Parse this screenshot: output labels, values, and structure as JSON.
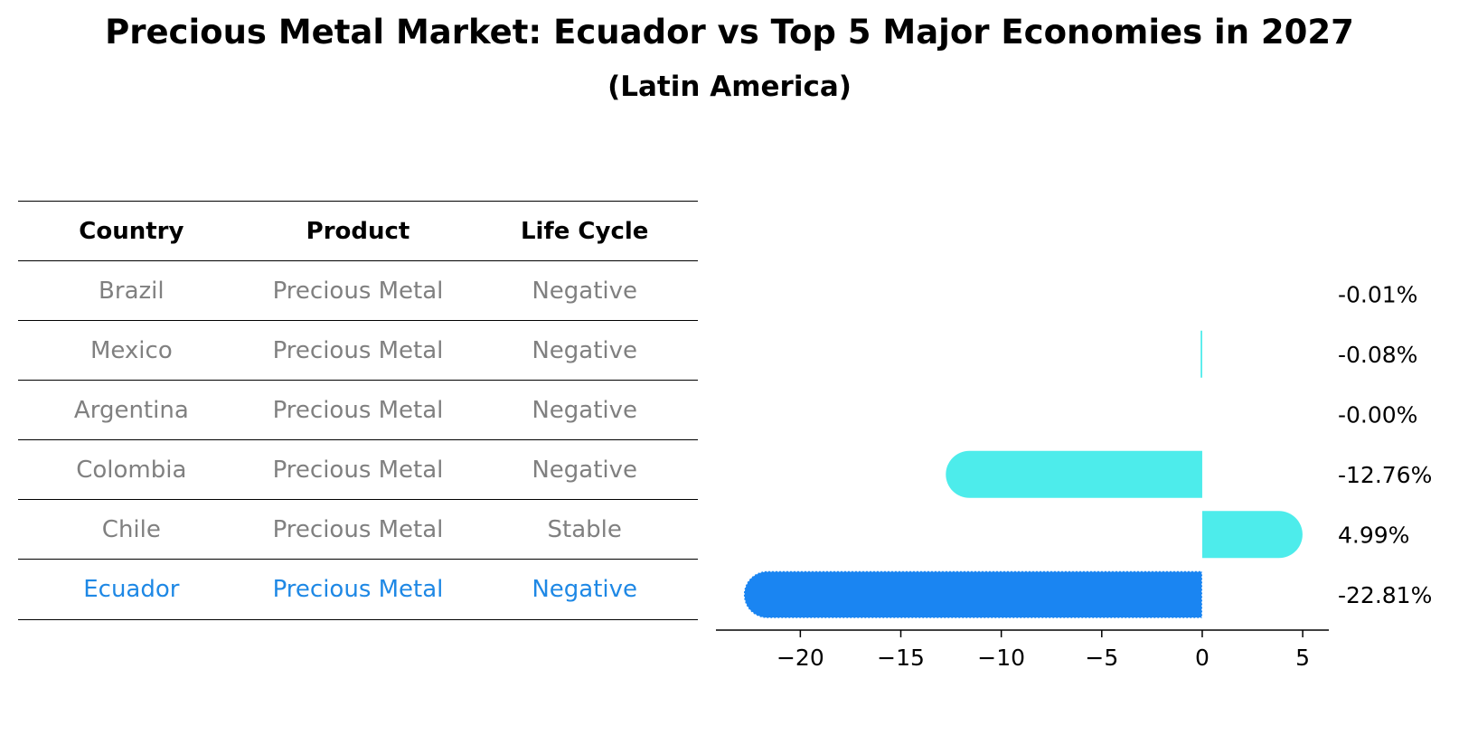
{
  "title": "Precious Metal Market: Ecuador vs Top 5 Major Economies in 2027",
  "subtitle": "(Latin America)",
  "table": {
    "headers": [
      "Country",
      "Product",
      "Life Cycle"
    ],
    "rows": [
      {
        "country": "Brazil",
        "product": "Precious Metal",
        "life_cycle": "Negative"
      },
      {
        "country": "Mexico",
        "product": "Precious Metal",
        "life_cycle": "Negative"
      },
      {
        "country": "Argentina",
        "product": "Precious Metal",
        "life_cycle": "Negative"
      },
      {
        "country": "Colombia",
        "product": "Precious Metal",
        "life_cycle": "Negative"
      },
      {
        "country": "Chile",
        "product": "Precious Metal",
        "life_cycle": "Stable"
      },
      {
        "country": "Ecuador",
        "product": "Precious Metal",
        "life_cycle": "Negative"
      }
    ]
  },
  "chart_data": {
    "type": "bar",
    "orientation": "horizontal",
    "categories": [
      "Brazil",
      "Mexico",
      "Argentina",
      "Colombia",
      "Chile",
      "Ecuador"
    ],
    "values": [
      -0.01,
      -0.08,
      -0.0,
      -12.76,
      4.99,
      -22.81
    ],
    "value_labels": [
      "-0.01%",
      "-0.08%",
      "-0.00%",
      "-12.76%",
      "4.99%",
      "-22.81%"
    ],
    "highlight": "Ecuador",
    "xlim": [
      -24.2,
      6.3
    ],
    "xticks": [
      -20,
      -15,
      -10,
      -5,
      0,
      5
    ],
    "xtick_labels": [
      "−20",
      "−15",
      "−10",
      "−5",
      "0",
      "5"
    ],
    "xlabel": "",
    "ylabel": "",
    "colors": {
      "default": "#4deceb",
      "highlight": "#1a85f2"
    }
  }
}
